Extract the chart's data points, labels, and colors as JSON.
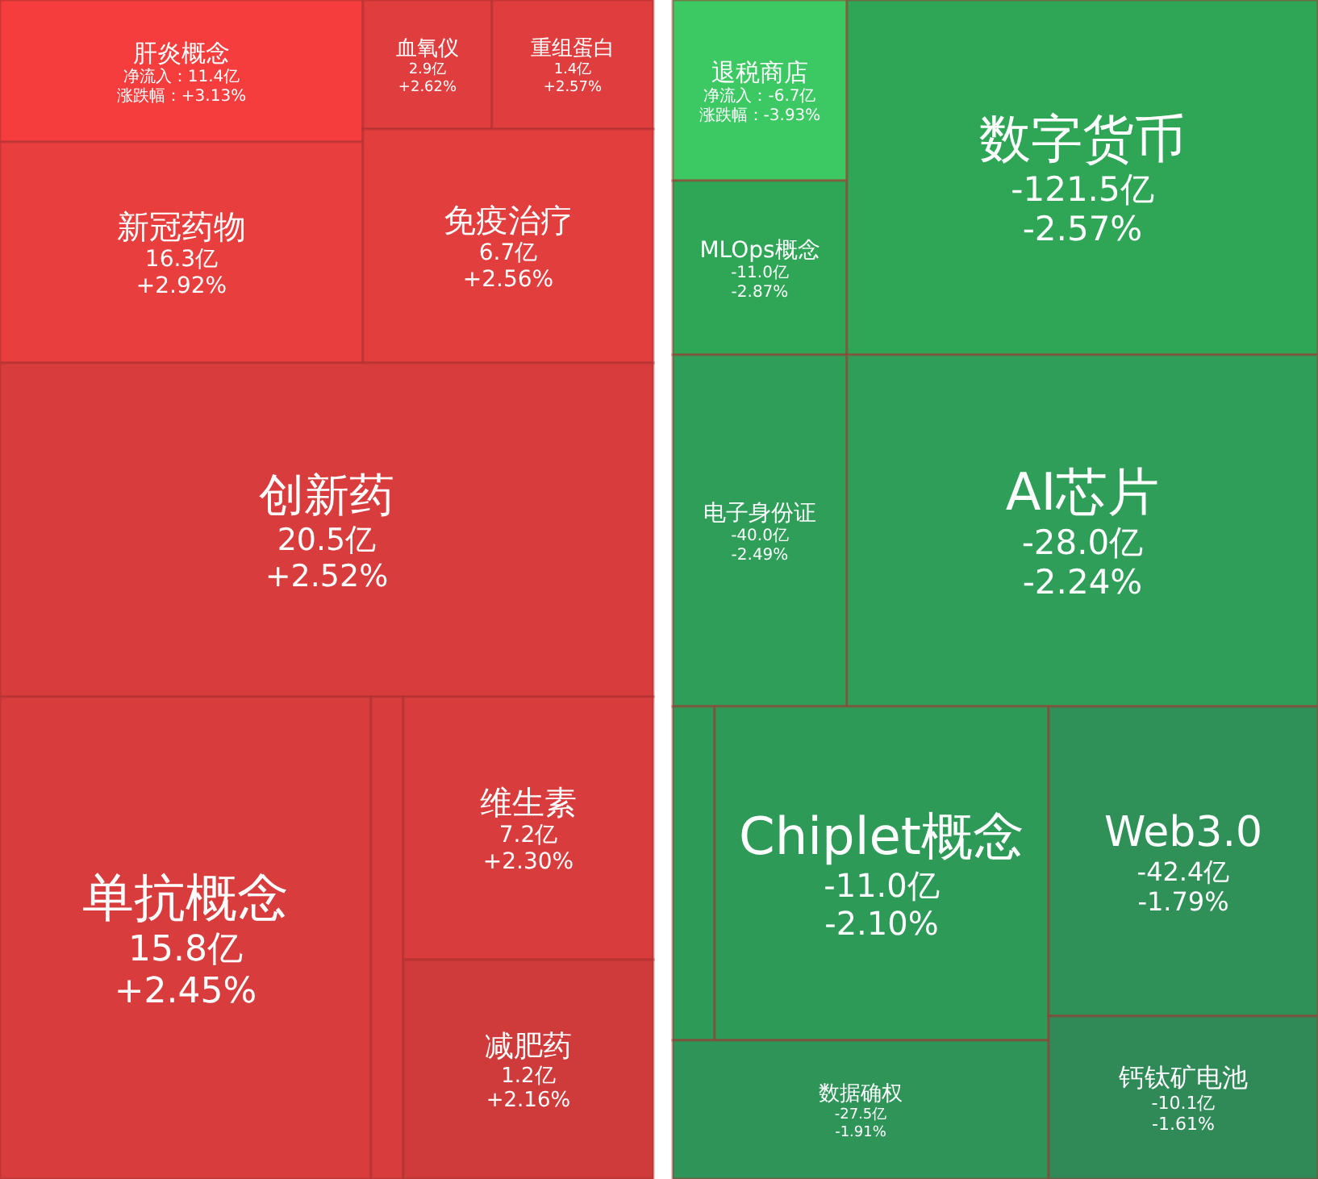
{
  "chart_data": [
    {
      "type": "other",
      "categories": [
        "肝炎概念",
        "血氧仪",
        "重组蛋白",
        "新冠药物",
        "免疫治疗",
        "创新药",
        "单抗概念",
        null,
        "维生素",
        "减肥药"
      ],
      "series": [
        {
          "colors": [
            "#f53d3d",
            "#e03e3e",
            "#e03e3e",
            "#e83e3e",
            "#e23e3e",
            "#d93c3c",
            "#d83c3c",
            "#d83c3c",
            "#d83c3c",
            "#cf3a3a"
          ],
          "values": [
            11.4,
            2.9,
            1.4,
            16.3,
            6.7,
            20.5,
            15.8,
            null,
            7.2,
            1.2
          ],
          "value_labels": [
            "净流入：11.4亿",
            "2.9亿",
            "1.4亿",
            "16.3亿",
            "6.7亿",
            "20.5亿",
            "15.8亿",
            null,
            "7.2亿",
            "1.2亿"
          ]
        },
        {
          "values": [
            3.13,
            2.62,
            2.57,
            2.92,
            2.56,
            2.52,
            2.45,
            null,
            2.3,
            2.16
          ],
          "value_labels": [
            "涨跌幅：+3.13%",
            "+2.62%",
            "+2.57%",
            "+2.92%",
            "+2.56%",
            "+2.52%",
            "+2.45%",
            null,
            "+2.30%",
            "+2.16%"
          ]
        }
      ]
    },
    {
      "type": "other",
      "categories": [
        "退税商店",
        "MLOps概念",
        "数字货币",
        "电子身份证",
        "AI芯片",
        null,
        "Chiplet概念",
        "Web3.0",
        "数据确权",
        "钙钛矿电池"
      ],
      "series": [
        {
          "colors": [
            "#3cc862",
            "#2ea656",
            "#2ea656",
            "#2e9e58",
            "#2e9e58",
            "#2e9a58",
            "#2e9a58",
            "#2f9058",
            "#2e9458",
            "#2f8a58"
          ],
          "values": [
            -6.7,
            -11.0,
            -121.5,
            -40.0,
            -28.0,
            null,
            -11.0,
            -42.4,
            -27.5,
            -10.1
          ],
          "value_labels": [
            "净流入：-6.7亿",
            "-11.0亿",
            "-121.5亿",
            "-40.0亿",
            "-28.0亿",
            null,
            "-11.0亿",
            "-42.4亿",
            "-27.5亿",
            "-10.1亿"
          ]
        },
        {
          "values": [
            -3.93,
            -2.87,
            -2.57,
            -2.49,
            -2.24,
            null,
            -2.1,
            -1.79,
            -1.91,
            -1.61
          ],
          "value_labels": [
            "涨跌幅：-3.93%",
            "-2.87%",
            "-2.57%",
            "-2.49%",
            "-2.24%",
            null,
            "-2.10%",
            "-1.79%",
            "-1.91%",
            "-1.61%"
          ]
        }
      ]
    }
  ]
}
